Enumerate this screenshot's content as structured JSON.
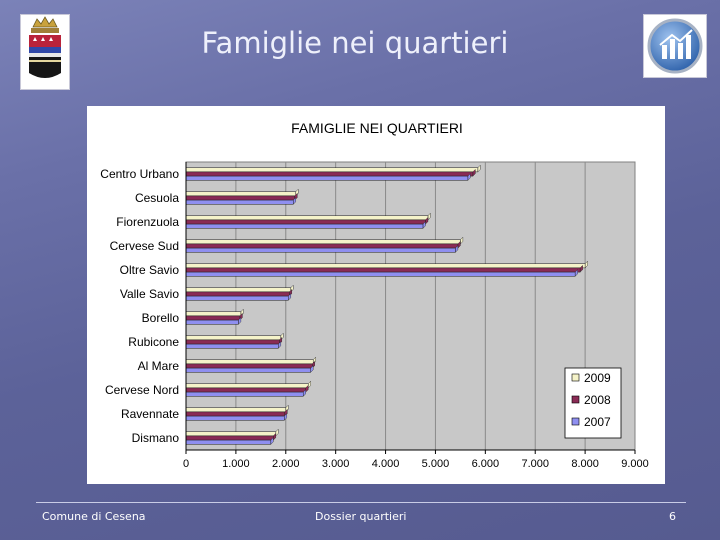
{
  "slide": {
    "title": "Famiglie nei quartieri"
  },
  "footer": {
    "left": "Comune di Cesena",
    "center": "Dossier quartieri",
    "page": "6"
  },
  "icons": {
    "left": "coat-of-arms-icon",
    "right": "bar-chart-logo-icon"
  },
  "colors": {
    "2009": "#f5f3c9",
    "2008": "#8a2b55",
    "2007": "#8f8ff0",
    "plot_background": "#c8c8c8"
  },
  "chart_data": {
    "type": "bar",
    "orientation": "horizontal",
    "title": "FAMIGLIE NEI QUARTIERI",
    "categories": [
      "Centro Urbano",
      "Cesuola",
      "Fiorenzuola",
      "Cervese Sud",
      "Oltre Savio",
      "Valle Savio",
      "Borello",
      "Rubicone",
      "Al Mare",
      "Cervese Nord",
      "Ravennate",
      "Dismano"
    ],
    "series": [
      {
        "name": "2009",
        "values": [
          5850,
          2200,
          4850,
          5500,
          8000,
          2100,
          1100,
          1900,
          2550,
          2450,
          2000,
          1800
        ]
      },
      {
        "name": "2008",
        "values": [
          5750,
          2180,
          4800,
          5450,
          7900,
          2070,
          1080,
          1870,
          2530,
          2400,
          1980,
          1750
        ]
      },
      {
        "name": "2007",
        "values": [
          5650,
          2150,
          4750,
          5400,
          7800,
          2050,
          1050,
          1850,
          2500,
          2350,
          1970,
          1700
        ]
      }
    ],
    "xlim": [
      0,
      9000
    ],
    "xticks": [
      "0",
      "1.000",
      "2.000",
      "3.000",
      "4.000",
      "5.000",
      "6.000",
      "7.000",
      "8.000",
      "9.000"
    ],
    "legend": [
      "2009",
      "2008",
      "2007"
    ],
    "legend_position": "bottom-right",
    "grid": true
  }
}
